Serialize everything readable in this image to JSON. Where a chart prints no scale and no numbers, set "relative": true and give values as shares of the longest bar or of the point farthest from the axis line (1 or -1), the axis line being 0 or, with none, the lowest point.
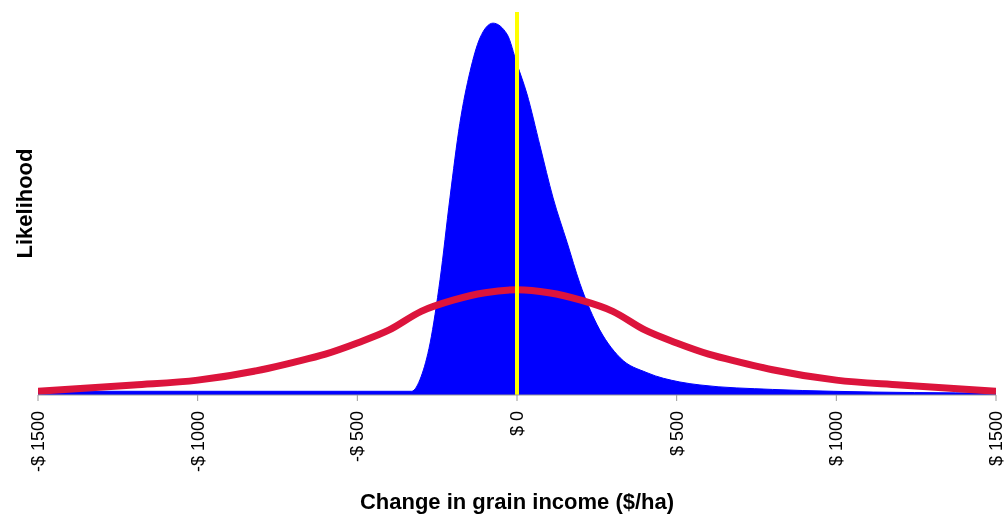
{
  "chart_data": {
    "type": "line",
    "relative": true,
    "xlabel": "Change in grain income ($/ha)",
    "ylabel": "Likelihood",
    "xlim": [
      -1500,
      1500
    ],
    "xticks": [
      {
        "value": -1500,
        "label": "-$ 1500"
      },
      {
        "value": -1000,
        "label": "-$ 1000"
      },
      {
        "value": -500,
        "label": "-$ 500"
      },
      {
        "value": 0,
        "label": "$ 0"
      },
      {
        "value": 500,
        "label": "$ 500"
      },
      {
        "value": 1000,
        "label": "$ 1000"
      },
      {
        "value": 1500,
        "label": "$ 1500"
      }
    ],
    "grid": false,
    "legend": false,
    "ref_lines": [
      {
        "axis": "x",
        "value": 0,
        "color": "#ffff00"
      }
    ],
    "series": [
      {
        "type": "area",
        "color": "#0000ff",
        "x": [
          -1500,
          -1000,
          -500,
          -330,
          -300,
          -272,
          -241,
          -210,
          -179,
          -147,
          -116,
          -75,
          -31,
          0,
          31,
          72,
          113,
          157,
          197,
          250,
          323,
          407,
          510,
          573,
          800,
          990,
          1500
        ],
        "values": [
          0.01,
          0.01,
          0.01,
          0.01,
          0.05,
          0.14,
          0.31,
          0.53,
          0.73,
          0.87,
          0.96,
          1.0,
          0.97,
          0.89,
          0.81,
          0.67,
          0.53,
          0.41,
          0.3,
          0.19,
          0.1,
          0.06,
          0.035,
          0.027,
          0.015,
          0.01,
          0.005
        ]
      },
      {
        "color": "#dc143c",
        "x": [
          -1500,
          -1200,
          -1000,
          -800,
          -700,
          -600,
          -500,
          -400,
          -300,
          -200,
          -100,
          0,
          100,
          200,
          300,
          400,
          500,
          600,
          700,
          800,
          1000,
          1200,
          1500
        ],
        "values": [
          0.01,
          0.027,
          0.04,
          0.068,
          0.088,
          0.11,
          0.14,
          0.175,
          0.225,
          0.255,
          0.275,
          0.283,
          0.275,
          0.255,
          0.225,
          0.175,
          0.14,
          0.11,
          0.088,
          0.068,
          0.04,
          0.027,
          0.01
        ]
      }
    ]
  }
}
